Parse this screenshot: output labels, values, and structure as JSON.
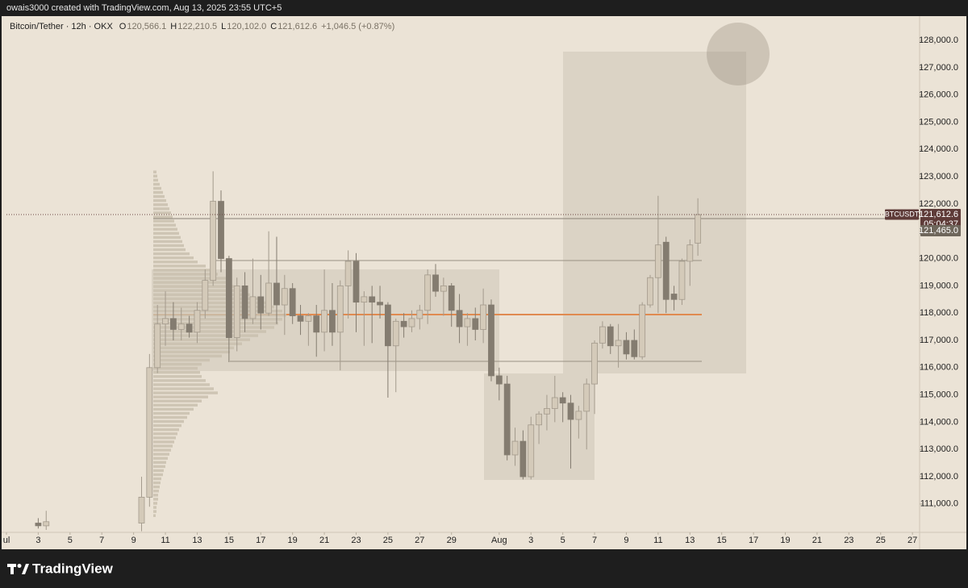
{
  "header": {
    "attribution": "owais3000 created with TradingView.com, Aug 13, 2025 23:55 UTC+5"
  },
  "footer": {
    "brand": "TradingView"
  },
  "chart_data": {
    "type": "candlestick",
    "title": "Bitcoin/Tether · 12h · OKX",
    "ohlc_legend": [
      {
        "label": "O",
        "value": "120,566.1"
      },
      {
        "label": "H",
        "value": "122,210.5"
      },
      {
        "label": "L",
        "value": "120,102.0"
      },
      {
        "label": "C",
        "value": "121,612.6"
      }
    ],
    "change": "+1,046.5 (+0.87%)",
    "x": [
      3,
      3.5,
      9.5,
      10,
      10.5,
      11,
      11.5,
      12,
      12.5,
      13,
      13.5,
      14,
      14.5,
      15,
      15.5,
      16,
      16.5,
      17,
      17.5,
      18,
      18.5,
      19,
      19.5,
      20,
      20.5,
      21,
      21.5,
      22,
      22.5,
      23,
      23.5,
      24,
      24.5,
      25,
      25.5,
      26,
      26.5,
      27,
      27.5,
      28,
      28.5,
      29,
      29.5,
      30,
      30.5,
      31,
      31.5,
      32,
      32.5,
      33,
      33.5,
      34,
      34.5,
      35,
      35.5,
      36,
      36.5,
      37,
      37.5,
      38,
      38.5,
      39,
      39.5,
      40,
      40.5,
      41,
      41.5,
      42,
      42.5,
      43,
      43.5,
      44,
      44.5
    ],
    "open": [
      110300,
      110200,
      110300,
      111250,
      116000,
      117600,
      117800,
      117400,
      117600,
      117300,
      118100,
      119200,
      122100,
      120000,
      117100,
      119000,
      117800,
      118600,
      118000,
      119100,
      118300,
      118900,
      117900,
      117700,
      117900,
      117300,
      118100,
      117300,
      119000,
      119900,
      118400,
      118600,
      118400,
      118300,
      116800,
      117700,
      117500,
      117800,
      118100,
      119400,
      118800,
      119000,
      118100,
      117500,
      117800,
      117400,
      118300,
      115700,
      115400,
      112800,
      113300,
      112000,
      113900,
      114300,
      114500,
      114900,
      114700,
      114100,
      114400,
      115400,
      116900,
      117500,
      116800,
      117000,
      117000,
      116400,
      118300,
      119300,
      120600,
      118700,
      118500,
      119900,
      120566.1
    ],
    "high": [
      110480,
      110750,
      112000,
      116500,
      118300,
      118800,
      118400,
      118200,
      117900,
      118400,
      119600,
      123200,
      122500,
      120100,
      119300,
      119500,
      120000,
      119400,
      121000,
      120800,
      119400,
      119100,
      118300,
      118000,
      118300,
      119600,
      119100,
      119200,
      120300,
      120200,
      118800,
      119000,
      119000,
      118400,
      117800,
      118000,
      118100,
      118300,
      119600,
      119800,
      119300,
      119100,
      118700,
      118000,
      118200,
      118900,
      118500,
      116000,
      115700,
      113800,
      113700,
      114200,
      114400,
      115000,
      115700,
      115100,
      115000,
      114600,
      115600,
      117000,
      117700,
      117600,
      117600,
      117300,
      117400,
      118400,
      119400,
      122300,
      120800,
      119000,
      120000,
      120700,
      122210.5
    ],
    "low": [
      110100,
      110050,
      110000,
      110900,
      115800,
      116800,
      117000,
      117000,
      117100,
      116900,
      117800,
      119000,
      119500,
      116200,
      116600,
      117300,
      117600,
      117400,
      117900,
      117600,
      117200,
      117600,
      117200,
      116800,
      116400,
      116600,
      116800,
      115900,
      117800,
      117300,
      116800,
      116900,
      117800,
      114900,
      115100,
      117100,
      117300,
      117400,
      117600,
      118600,
      117900,
      117500,
      116900,
      116800,
      117000,
      116900,
      115500,
      114800,
      112600,
      112400,
      111900,
      111900,
      113200,
      113700,
      114000,
      114000,
      112300,
      113400,
      113000,
      114300,
      116700,
      116500,
      116000,
      116300,
      116300,
      116300,
      118200,
      118000,
      118000,
      118100,
      118300,
      119000,
      120102.0
    ],
    "close": [
      110200,
      110350,
      111250,
      116000,
      117600,
      117800,
      117400,
      117600,
      117300,
      118100,
      119200,
      122100,
      120000,
      117100,
      119000,
      117800,
      118600,
      118000,
      119100,
      118300,
      118900,
      117900,
      117700,
      117900,
      117300,
      118100,
      117300,
      119000,
      119900,
      118400,
      118600,
      118400,
      118300,
      116800,
      117700,
      117500,
      117800,
      118100,
      119400,
      118800,
      119000,
      118100,
      117500,
      117800,
      117400,
      118300,
      115700,
      115400,
      112800,
      113300,
      112000,
      113900,
      114300,
      114500,
      114900,
      114700,
      114100,
      114400,
      115400,
      116900,
      117500,
      116800,
      117000,
      116500,
      116400,
      118300,
      119300,
      120500,
      118500,
      118500,
      119900,
      120500,
      121612.6
    ],
    "up_color": "#d4cab9",
    "up_border": "#a39a8c",
    "down_color": "#847c70",
    "xlim": [
      1,
      58.45
    ],
    "xticks": [
      {
        "value": 1,
        "label": "ul"
      },
      3,
      5,
      7,
      9,
      11,
      13,
      15,
      17,
      19,
      21,
      23,
      25,
      27,
      29,
      {
        "value": 32,
        "label": "Aug"
      },
      {
        "value": 34,
        "label": "3"
      },
      {
        "value": 36,
        "label": "5"
      },
      {
        "value": 38,
        "label": "7"
      },
      {
        "value": 40,
        "label": "9"
      },
      {
        "value": 42,
        "label": "11"
      },
      {
        "value": 44,
        "label": "13"
      },
      {
        "value": 46,
        "label": "15"
      },
      {
        "value": 48,
        "label": "17"
      },
      {
        "value": 50,
        "label": "19"
      },
      {
        "value": 52,
        "label": "21"
      },
      {
        "value": 54,
        "label": "23"
      },
      {
        "value": 56,
        "label": "25"
      },
      {
        "value": 58,
        "label": "27"
      }
    ],
    "ylim": [
      109960,
      128890
    ],
    "yticks": [
      {
        "value": 111000,
        "label": "111,000.0"
      },
      {
        "value": 112000,
        "label": "112,000.0"
      },
      {
        "value": 113000,
        "label": "113,000.0"
      },
      {
        "value": 114000,
        "label": "114,000.0"
      },
      {
        "value": 115000,
        "label": "115,000.0"
      },
      {
        "value": 116000,
        "label": "116,000.0"
      },
      {
        "value": 117000,
        "label": "117,000.0"
      },
      {
        "value": 118000,
        "label": "118,000.0"
      },
      {
        "value": 119000,
        "label": "119,000.0"
      },
      {
        "value": 120000,
        "label": "120,000.0"
      },
      {
        "value": 121000,
        "label": "121,000.0"
      },
      {
        "value": 122000,
        "label": "122,000.0"
      },
      {
        "value": 123000,
        "label": "123,000.0"
      },
      {
        "value": 124000,
        "label": "124,000.0"
      },
      {
        "value": 125000,
        "label": "125,000.0"
      },
      {
        "value": 126000,
        "label": "126,000.0"
      },
      {
        "value": 127000,
        "label": "127,000.0"
      },
      {
        "value": 128000,
        "label": "128,000.0"
      }
    ],
    "symbol": "BTCUSDT",
    "last_price": {
      "value": 121612.6,
      "label": "121,612.6"
    },
    "countdown": "05:04:37",
    "level": {
      "value": 121465,
      "label": "121,465.0"
    },
    "volume_profile": {
      "price_range": [
        110500,
        123250
      ],
      "color": "#c9bfae",
      "values": [
        3,
        4,
        4,
        5,
        6,
        6,
        7,
        8,
        9,
        10,
        12,
        13,
        15,
        16,
        18,
        20,
        22,
        24,
        26,
        28,
        30,
        32,
        35,
        38,
        42,
        45,
        50,
        55,
        60,
        68,
        80,
        75,
        70,
        65,
        60,
        58,
        55,
        60,
        70,
        85,
        95,
        100,
        110,
        120,
        130,
        140,
        150,
        155,
        160,
        165,
        160,
        150,
        140,
        130,
        120,
        110,
        100,
        95,
        90,
        80,
        70,
        65,
        55,
        50,
        45,
        40,
        38,
        36,
        34,
        32,
        30,
        28,
        26,
        24,
        22,
        20,
        18,
        16,
        14,
        12,
        10,
        8,
        6,
        5,
        4
      ]
    }
  }
}
